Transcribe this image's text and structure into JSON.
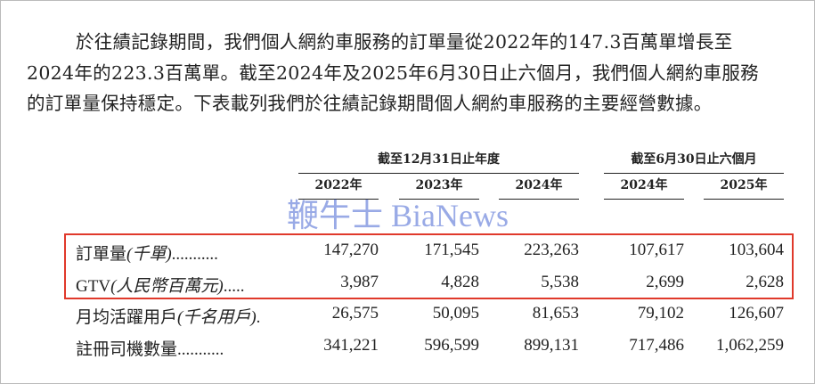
{
  "paragraph": [
    "於往績記錄期間，我們個人網約車服務的訂單量從2022年的147.3百萬單增長至",
    "2024年的223.3百萬單。截至2024年及2025年6月30日止六個月，我們個人網約車服務",
    "的訂單量保持穩定。下表載列我們於往績記錄期間個人網約車服務的主要經營數據。"
  ],
  "table": {
    "groups": [
      "截至12月31日止年度",
      "截至6月30日止六個月"
    ],
    "years": [
      "2022年",
      "2023年",
      "2024年",
      "2024年",
      "2025年"
    ],
    "rows": [
      {
        "label": "訂單量",
        "unit": "(千單)",
        "dots": "...........",
        "values": [
          "147,270",
          "171,545",
          "223,263",
          "107,617",
          "103,604"
        ],
        "highlighted": true
      },
      {
        "label": "GTV",
        "unit": "(人民幣百萬元)",
        "dots": ".....",
        "values": [
          "3,987",
          "4,828",
          "5,538",
          "2,699",
          "2,628"
        ],
        "highlighted": true
      },
      {
        "label": "月均活躍用戶",
        "unit": "(千名用戶)",
        "dots": ".",
        "values": [
          "26,575",
          "50,095",
          "81,653",
          "79,102",
          "126,607"
        ],
        "highlighted": false
      },
      {
        "label": "註冊司機數量",
        "unit": "",
        "dots": "...........",
        "values": [
          "341,221",
          "596,599",
          "899,131",
          "717,486",
          "1,062,259"
        ],
        "highlighted": false
      }
    ]
  },
  "highlight_color": "#e0392b",
  "watermark": "鞭牛士 BiaNews"
}
